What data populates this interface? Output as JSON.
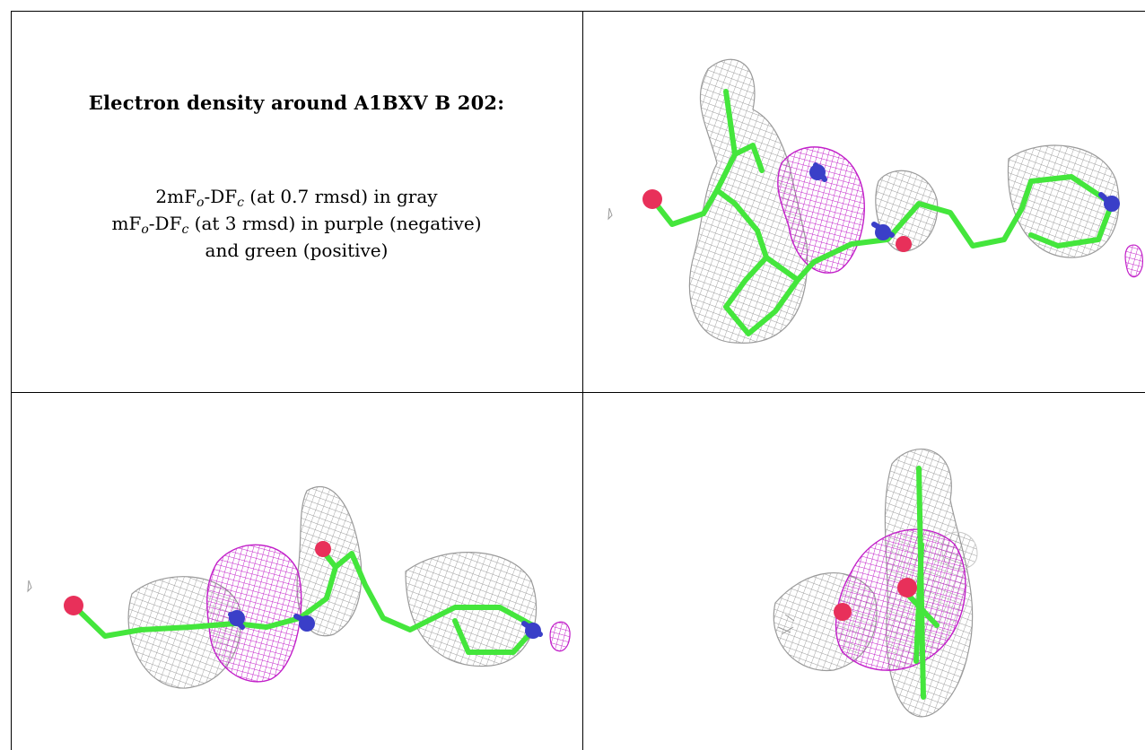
{
  "caption": {
    "title": "Electron density around A1BXV B 202:",
    "line1": {
      "pre": "2mF",
      "sub1": "o",
      "mid": "-DF",
      "sub2": "c",
      "post": " (at 0.7 rmsd) in gray"
    },
    "line2": {
      "pre": "mF",
      "sub1": "o",
      "mid": "-DF",
      "sub2": "c",
      "post": " (at 3 rmsd) in purple (negative)"
    },
    "line3": "and green (positive)"
  },
  "colors": {
    "mesh_2fofc": "#9a9a9a",
    "mesh_negative": "#c21fc9",
    "carbon": "#44e63c",
    "nitrogen": "#3a3fc8",
    "oxygen": "#e8305a",
    "border": "#000000"
  },
  "panels": [
    {
      "name": "view-1",
      "icon": "ligand-density-view"
    },
    {
      "name": "view-2",
      "icon": "ligand-density-view"
    },
    {
      "name": "view-3",
      "icon": "ligand-density-view"
    }
  ]
}
